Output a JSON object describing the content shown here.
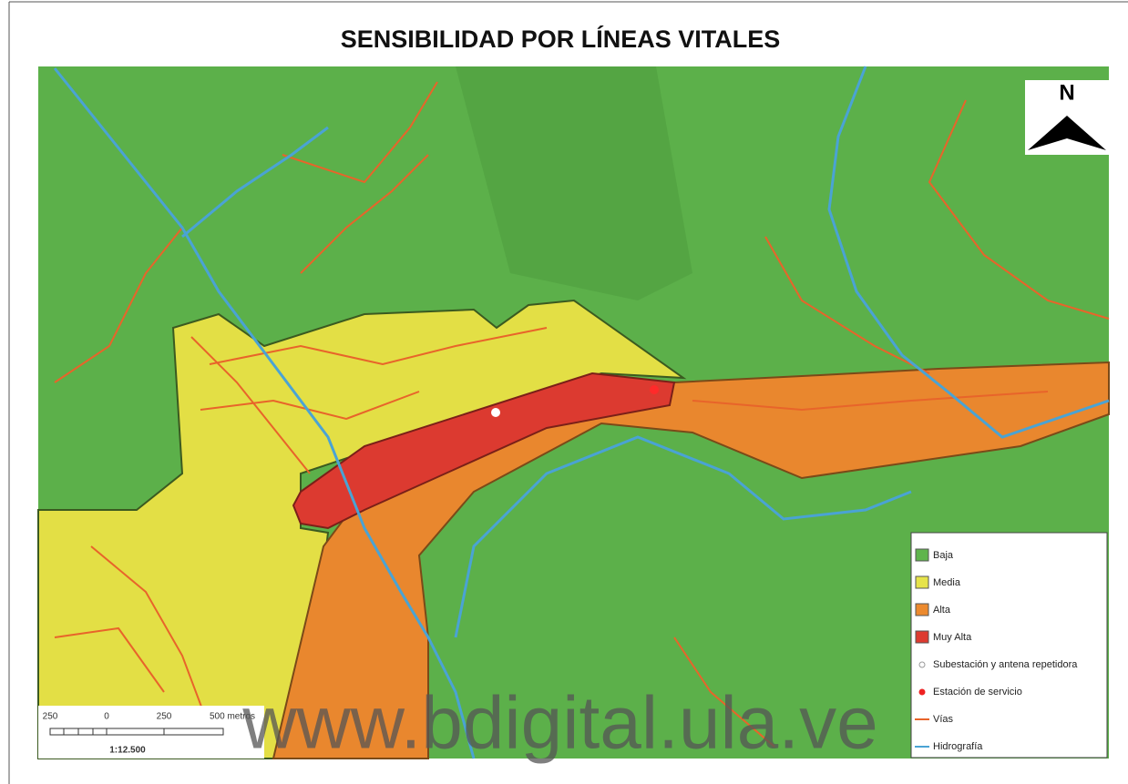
{
  "title": "SENSIBILIDAD POR LÍNEAS VITALES",
  "north": "N",
  "legend": [
    {
      "label": "Baja",
      "color": "#5fb54c"
    },
    {
      "label": "Media",
      "color": "#e6e34a"
    },
    {
      "label": "Alta",
      "color": "#ec8a2e"
    },
    {
      "label": "Muy Alta",
      "color": "#dd3b30"
    },
    {
      "label": "Subestación y antena repetidora"
    },
    {
      "label": "Estación de servicio"
    },
    {
      "label": "Vías"
    },
    {
      "label": "Hidrografía"
    }
  ],
  "scale": {
    "ticks": [
      "250",
      "0",
      "250",
      "500 metros"
    ],
    "ratio": "1:12.500"
  },
  "watermark": "www.bdigital.ula.ve"
}
